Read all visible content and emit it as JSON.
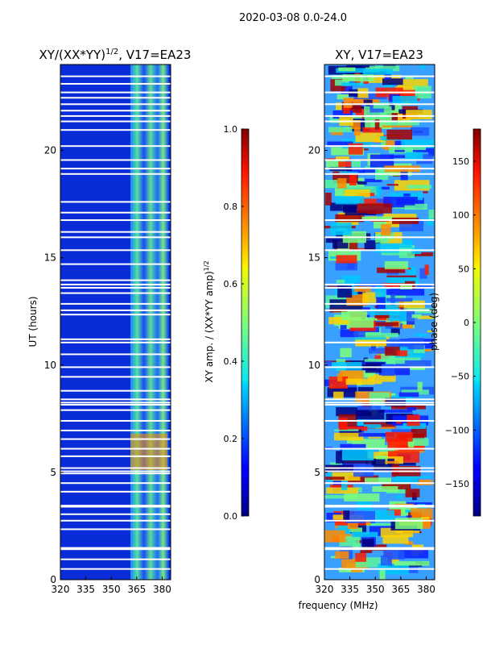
{
  "suptitle": "2020-03-08 0.0-24.0",
  "chart_data": [
    {
      "type": "heatmap",
      "title_prefix": "XY/(XX*YY)",
      "title_exponent": "1/2",
      "title_suffix": ", V17=EA23",
      "xlabel": "",
      "ylabel": "UT (hours)",
      "xlim": [
        320,
        385
      ],
      "ylim": [
        0,
        24
      ],
      "xticks": [
        320,
        335,
        350,
        365,
        380
      ],
      "yticks": [
        0,
        5,
        10,
        15,
        20
      ],
      "bright_band_mhz": [
        363,
        381
      ],
      "flagged_rows_hours": [
        0.5,
        0.95,
        1.42,
        1.48,
        2.35,
        2.75,
        3.05,
        3.4,
        3.45,
        4.1,
        4.5,
        4.95,
        5.05,
        5.2,
        5.75,
        6.1,
        6.55,
        6.95,
        7.4,
        7.9,
        8.15,
        8.25,
        8.4,
        8.8,
        9.45,
        9.9,
        10.5,
        11.05,
        11.2,
        12.35,
        12.55,
        12.85,
        13.35,
        13.6,
        13.75,
        13.95,
        14.7,
        15.35,
        15.95,
        16.2,
        16.75,
        17.1,
        17.6,
        18.9,
        19.15,
        19.55,
        20.2,
        20.95,
        21.35,
        21.6,
        21.85,
        22.15,
        22.45,
        22.7,
        23.1,
        23.45
      ],
      "colorbar": {
        "label_prefix": "XY amp. / (XX*YY amp)",
        "label_exponent": "1/2",
        "range": [
          0.0,
          1.0
        ],
        "tick_labels": [
          "0.0",
          "0.2",
          "0.4",
          "0.6",
          "0.8",
          "1.0"
        ],
        "tick_values": [
          0.0,
          0.2,
          0.4,
          0.6,
          0.8,
          1.0
        ]
      }
    },
    {
      "type": "heatmap",
      "title": "XY, V17=EA23",
      "xlabel": "frequency (MHz)",
      "ylabel": "",
      "xlim": [
        320,
        385
      ],
      "ylim": [
        0,
        24
      ],
      "xticks": [
        320,
        335,
        350,
        365,
        380
      ],
      "yticks": [
        0,
        5,
        10,
        15,
        20
      ],
      "flagged_rows_hours": [
        0.5,
        1.42,
        1.48,
        2.75,
        3.4,
        3.45,
        4.5,
        5.05,
        5.2,
        6.1,
        7.4,
        8.15,
        8.25,
        8.4,
        9.9,
        11.05,
        12.55,
        12.85,
        13.6,
        13.75,
        15.35,
        15.95,
        16.75,
        18.9,
        19.15,
        19.55,
        20.2,
        21.35,
        21.6,
        22.15,
        22.7,
        23.45
      ],
      "colorbar": {
        "label": "phase (deg)",
        "range": [
          -180,
          180
        ],
        "tick_labels": [
          "−150",
          "−100",
          "−50",
          "0",
          "50",
          "100",
          "150"
        ],
        "tick_values": [
          -150,
          -100,
          -50,
          0,
          50,
          100,
          150
        ]
      }
    }
  ]
}
